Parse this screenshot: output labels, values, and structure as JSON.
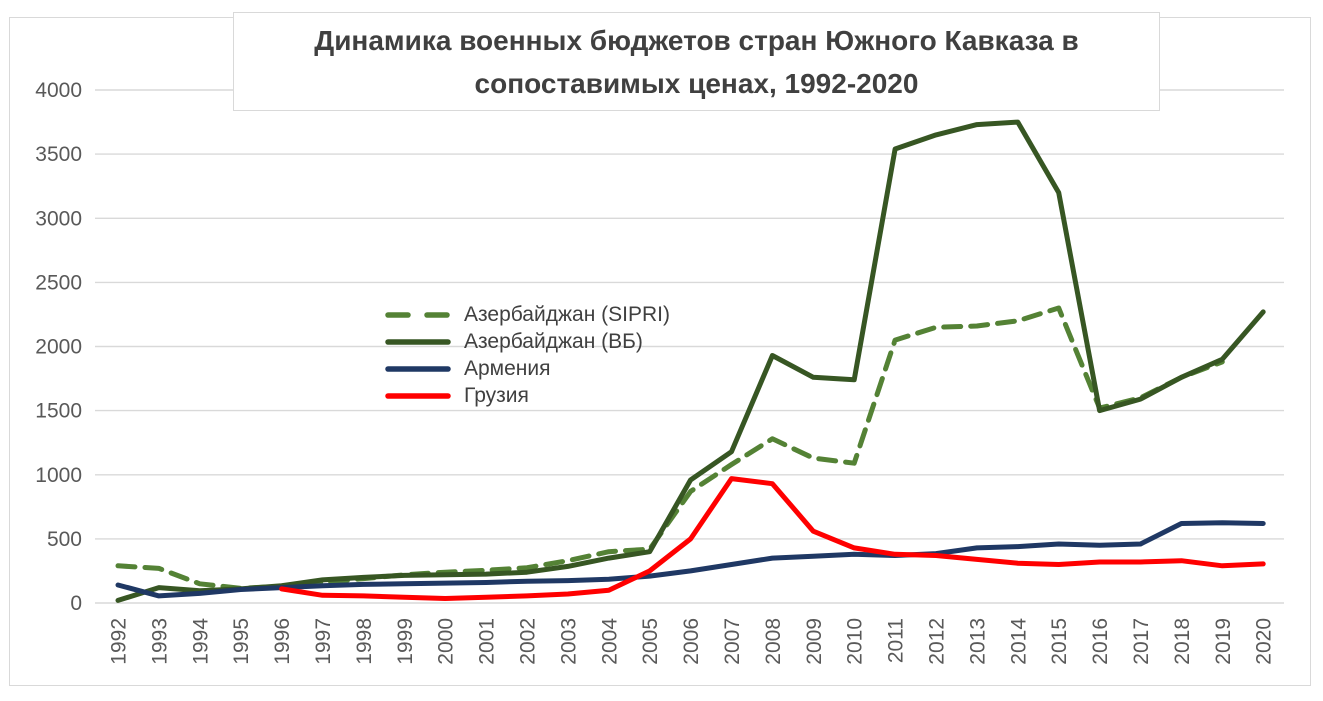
{
  "title": {
    "text": "Динамика военных бюджетов стран Южного Кавказа в сопоставимых ценах, 1992-2020",
    "lines": [
      "Динамика военных бюджетов стран Южного Кавказа в",
      "сопоставимых ценах, 1992-2020"
    ]
  },
  "chart_data": {
    "type": "line",
    "x": [
      1992,
      1993,
      1994,
      1995,
      1996,
      1997,
      1998,
      1999,
      2000,
      2001,
      2002,
      2003,
      2004,
      2005,
      2006,
      2007,
      2008,
      2009,
      2010,
      2011,
      2012,
      2013,
      2014,
      2015,
      2016,
      2017,
      2018,
      2019,
      2020
    ],
    "series": [
      {
        "name": "Азербайджан (SIPRI)",
        "color": "#548235",
        "dash": true,
        "values": [
          290,
          270,
          150,
          115,
          130,
          160,
          190,
          220,
          240,
          255,
          275,
          330,
          400,
          420,
          870,
          1080,
          1280,
          1130,
          1090,
          2050,
          2150,
          2160,
          2200,
          2300,
          1520,
          1600,
          1760,
          1880,
          null
        ]
      },
      {
        "name": "Азербайджан (ВБ)",
        "color": "#375623",
        "dash": false,
        "values": [
          20,
          120,
          95,
          110,
          135,
          180,
          200,
          215,
          220,
          225,
          240,
          285,
          350,
          400,
          960,
          1180,
          1930,
          1760,
          1740,
          3540,
          3650,
          3730,
          3750,
          3200,
          1500,
          1590,
          1760,
          1900,
          2270
        ]
      },
      {
        "name": "Армения",
        "color": "#1F3864",
        "dash": false,
        "values": [
          140,
          55,
          75,
          105,
          120,
          135,
          145,
          150,
          155,
          160,
          170,
          175,
          185,
          210,
          250,
          300,
          350,
          365,
          380,
          370,
          385,
          430,
          440,
          460,
          450,
          460,
          620,
          625,
          620
        ]
      },
      {
        "name": "Грузия",
        "color": "#FF0000",
        "dash": false,
        "values": [
          null,
          null,
          null,
          null,
          110,
          60,
          55,
          45,
          35,
          45,
          55,
          70,
          100,
          250,
          500,
          970,
          930,
          560,
          430,
          380,
          370,
          340,
          310,
          300,
          320,
          320,
          330,
          290,
          305
        ]
      }
    ],
    "title": "Динамика военных бюджетов стран Южного Кавказа в сопоставимых ценах, 1992-2020",
    "xlabel": "",
    "ylabel": "",
    "ylim": [
      0,
      4000
    ],
    "y_ticks": [
      "0",
      "500",
      "1000",
      "1500",
      "2000",
      "2500",
      "3000",
      "3500",
      "4000"
    ],
    "grid": "horizontal",
    "grid_color": "#D9D9D9",
    "axis_label_color": "#595959",
    "legend_position": "inside-left"
  }
}
